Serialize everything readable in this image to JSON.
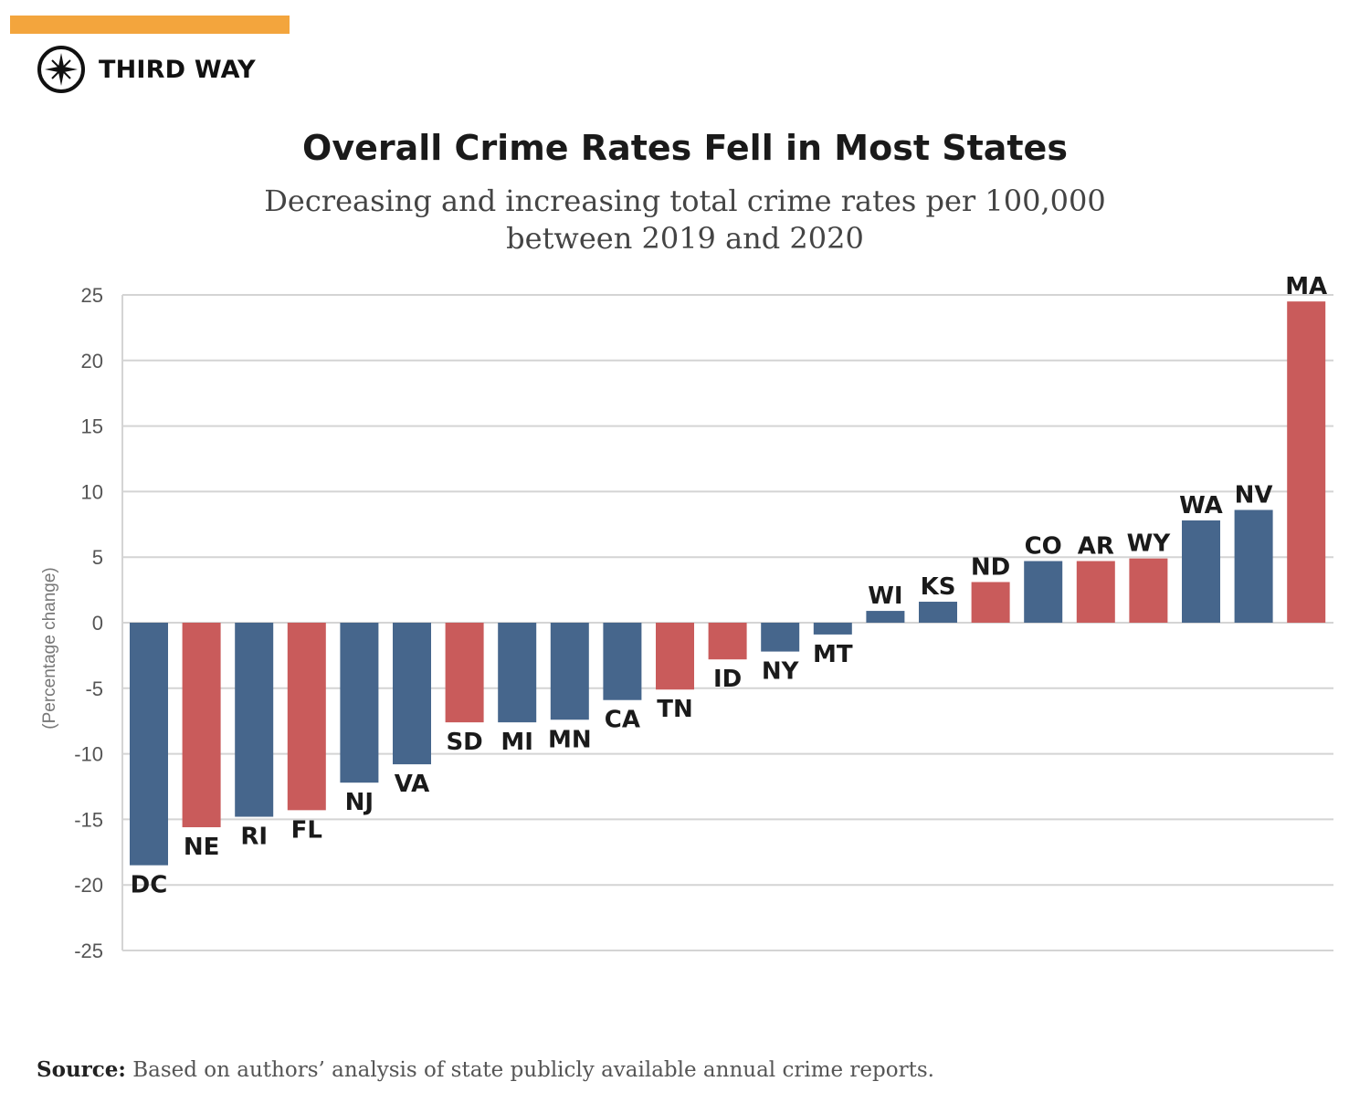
{
  "brand": {
    "name": "THIRD WAY",
    "accent_color": "#f3a53d",
    "logo_icon": "compass-star-icon"
  },
  "chart_data": {
    "type": "bar",
    "title": "Overall Crime Rates Fell in Most States",
    "subtitle_lines": [
      "Decreasing and increasing total crime rates per 100,000",
      "between 2019 and 2020"
    ],
    "ylabel": "(Percentage change)",
    "xlabel": "",
    "ylim": [
      -25,
      25
    ],
    "yticks": [
      25,
      20,
      15,
      10,
      5,
      0,
      -5,
      -10,
      -15,
      -20,
      -25
    ],
    "grid": true,
    "legend": "none",
    "categories": [
      "DC",
      "NE",
      "RI",
      "FL",
      "NJ",
      "VA",
      "SD",
      "MI",
      "MN",
      "CA",
      "TN",
      "ID",
      "NY",
      "MT",
      "WI",
      "KS",
      "ND",
      "CO",
      "AR",
      "WY",
      "WA",
      "NV",
      "MA"
    ],
    "values": [
      -18.5,
      -15.6,
      -14.8,
      -14.3,
      -12.2,
      -10.8,
      -7.6,
      -7.6,
      -7.4,
      -5.9,
      -5.1,
      -2.8,
      -2.2,
      -0.9,
      0.9,
      1.6,
      3.1,
      4.7,
      4.7,
      4.9,
      7.8,
      8.6,
      24.5
    ],
    "groups": [
      "blue",
      "red",
      "blue",
      "red",
      "blue",
      "blue",
      "red",
      "blue",
      "blue",
      "blue",
      "red",
      "red",
      "blue",
      "blue",
      "blue",
      "blue",
      "red",
      "blue",
      "red",
      "red",
      "blue",
      "blue",
      "red"
    ],
    "colors": {
      "blue": "#46668c",
      "red": "#c95b5b",
      "grid": "#d4d4d4",
      "tick_text": "#555555"
    }
  },
  "source": {
    "label": "Source:",
    "text": " Based on authors’ analysis of state publicly available annual crime reports."
  }
}
